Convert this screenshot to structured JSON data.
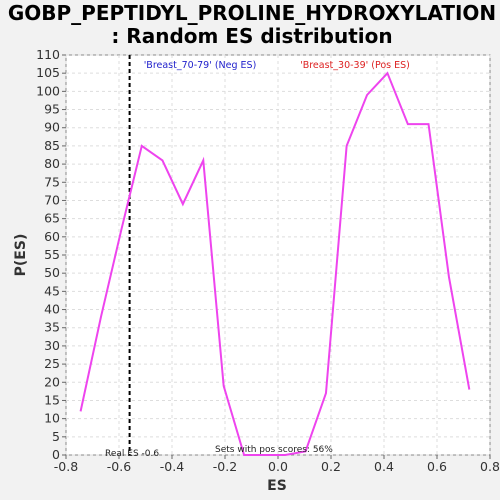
{
  "chart_data": {
    "type": "line",
    "title_lines": [
      "GOBP_PEPTIDYL_PROLINE_HYDROXYLATION",
      ": Random ES distribution"
    ],
    "xlabel": "ES",
    "ylabel": "P(ES)",
    "xlim": [
      -0.8,
      0.8
    ],
    "ylim": [
      0,
      110
    ],
    "xticks": [
      -0.8,
      -0.6,
      -0.4,
      -0.2,
      0.0,
      0.2,
      0.4,
      0.6,
      0.8
    ],
    "xtick_labels": [
      "-0.8",
      "-0.6",
      "-0.4",
      "-0.2",
      "0.0",
      "0.2",
      "0.4",
      "0.6",
      "0.8"
    ],
    "yticks": [
      0,
      5,
      10,
      15,
      20,
      25,
      30,
      35,
      40,
      45,
      50,
      55,
      60,
      65,
      70,
      75,
      80,
      85,
      90,
      95,
      100,
      105,
      110
    ],
    "ytick_labels": [
      "0",
      "5",
      "10",
      "15",
      "20",
      "25",
      "30",
      "35",
      "40",
      "45",
      "50",
      "55",
      "60",
      "65",
      "70",
      "75",
      "80",
      "85",
      "90",
      "95",
      "100",
      "105",
      "110"
    ],
    "grid": true,
    "series": [
      {
        "color": "#ee44ee",
        "x": [
          -0.745,
          -0.668,
          -0.591,
          -0.514,
          -0.436,
          -0.359,
          -0.282,
          -0.205,
          -0.128,
          -0.05,
          0.027,
          0.104,
          0.181,
          0.259,
          0.336,
          0.413,
          0.49,
          0.568,
          0.645,
          0.722
        ],
        "y": [
          12,
          38,
          62,
          85,
          81,
          69,
          81,
          19,
          0,
          0,
          0,
          1,
          17,
          85,
          99,
          105,
          91,
          91,
          49,
          18
        ]
      }
    ],
    "real_es": -0.56,
    "real_es_label": "Real ES -0.6",
    "pos_scores_label": "Sets with pos scores: 56%",
    "legend": {
      "neg": {
        "text": "'Breast_70-79' (Neg ES)",
        "color": "#2222cc"
      },
      "pos": {
        "text": "'Breast_30-39' (Pos ES)",
        "color": "#dd2222"
      }
    },
    "colors": {
      "background": "#f2f2f2",
      "plot_background": "#ffffff",
      "grid": "#dddddd",
      "line": "#ee44ee",
      "real_es_line": "#000000"
    }
  }
}
